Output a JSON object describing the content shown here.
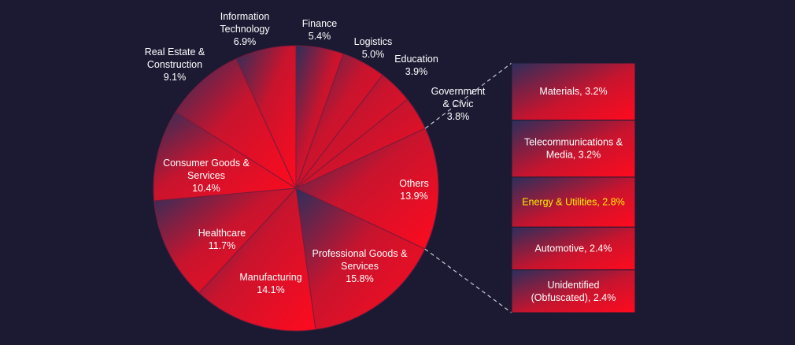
{
  "chart_data": {
    "type": "pie",
    "title": "",
    "slices": [
      {
        "label": "Finance",
        "value": 5.4,
        "text": "5.4%"
      },
      {
        "label": "Logistics",
        "value": 5.0,
        "text": "5.0%"
      },
      {
        "label": "Education",
        "value": 3.9,
        "text": "3.9%"
      },
      {
        "label": "Government & Civic",
        "value": 3.8,
        "text": "3.8%"
      },
      {
        "label": "Others",
        "value": 13.9,
        "text": "13.9%"
      },
      {
        "label": "Professional Goods & Services",
        "value": 15.8,
        "text": "15.8%"
      },
      {
        "label": "Manufacturing",
        "value": 14.1,
        "text": "14.1%"
      },
      {
        "label": "Healthcare",
        "value": 11.7,
        "text": "11.7%"
      },
      {
        "label": "Consumer Goods & Services",
        "value": 10.4,
        "text": "10.4%"
      },
      {
        "label": "Real Estate & Construction",
        "value": 9.1,
        "text": "9.1%"
      },
      {
        "label": "Information Technology",
        "value": 6.9,
        "text": "6.9%"
      }
    ],
    "others_breakdown": [
      {
        "label": "Materials",
        "value": 3.2,
        "text": "Materials, 3.2%"
      },
      {
        "label": "Telecommunications & Media",
        "value": 3.2,
        "text": "Telecommunications & Media, 3.2%"
      },
      {
        "label": "Energy & Utilities",
        "value": 2.8,
        "text": "Energy & Utilities, 2.8%",
        "highlight": true
      },
      {
        "label": "Automotive",
        "value": 2.4,
        "text": "Automotive, 2.4%"
      },
      {
        "label": "Unidentified (Obfuscated)",
        "value": 2.4,
        "text": "Unidentified (Obfuscated), 2.4%"
      }
    ],
    "colors": {
      "background": "#1c1a33",
      "gradient_dark": "#2b2f5c",
      "gradient_red": "#ff0a1e",
      "slice_stroke": "#7a1a3a",
      "leader_line": "#c8c8d0",
      "highlight_text": "#ffee00",
      "label_text": "#ffffff"
    }
  }
}
